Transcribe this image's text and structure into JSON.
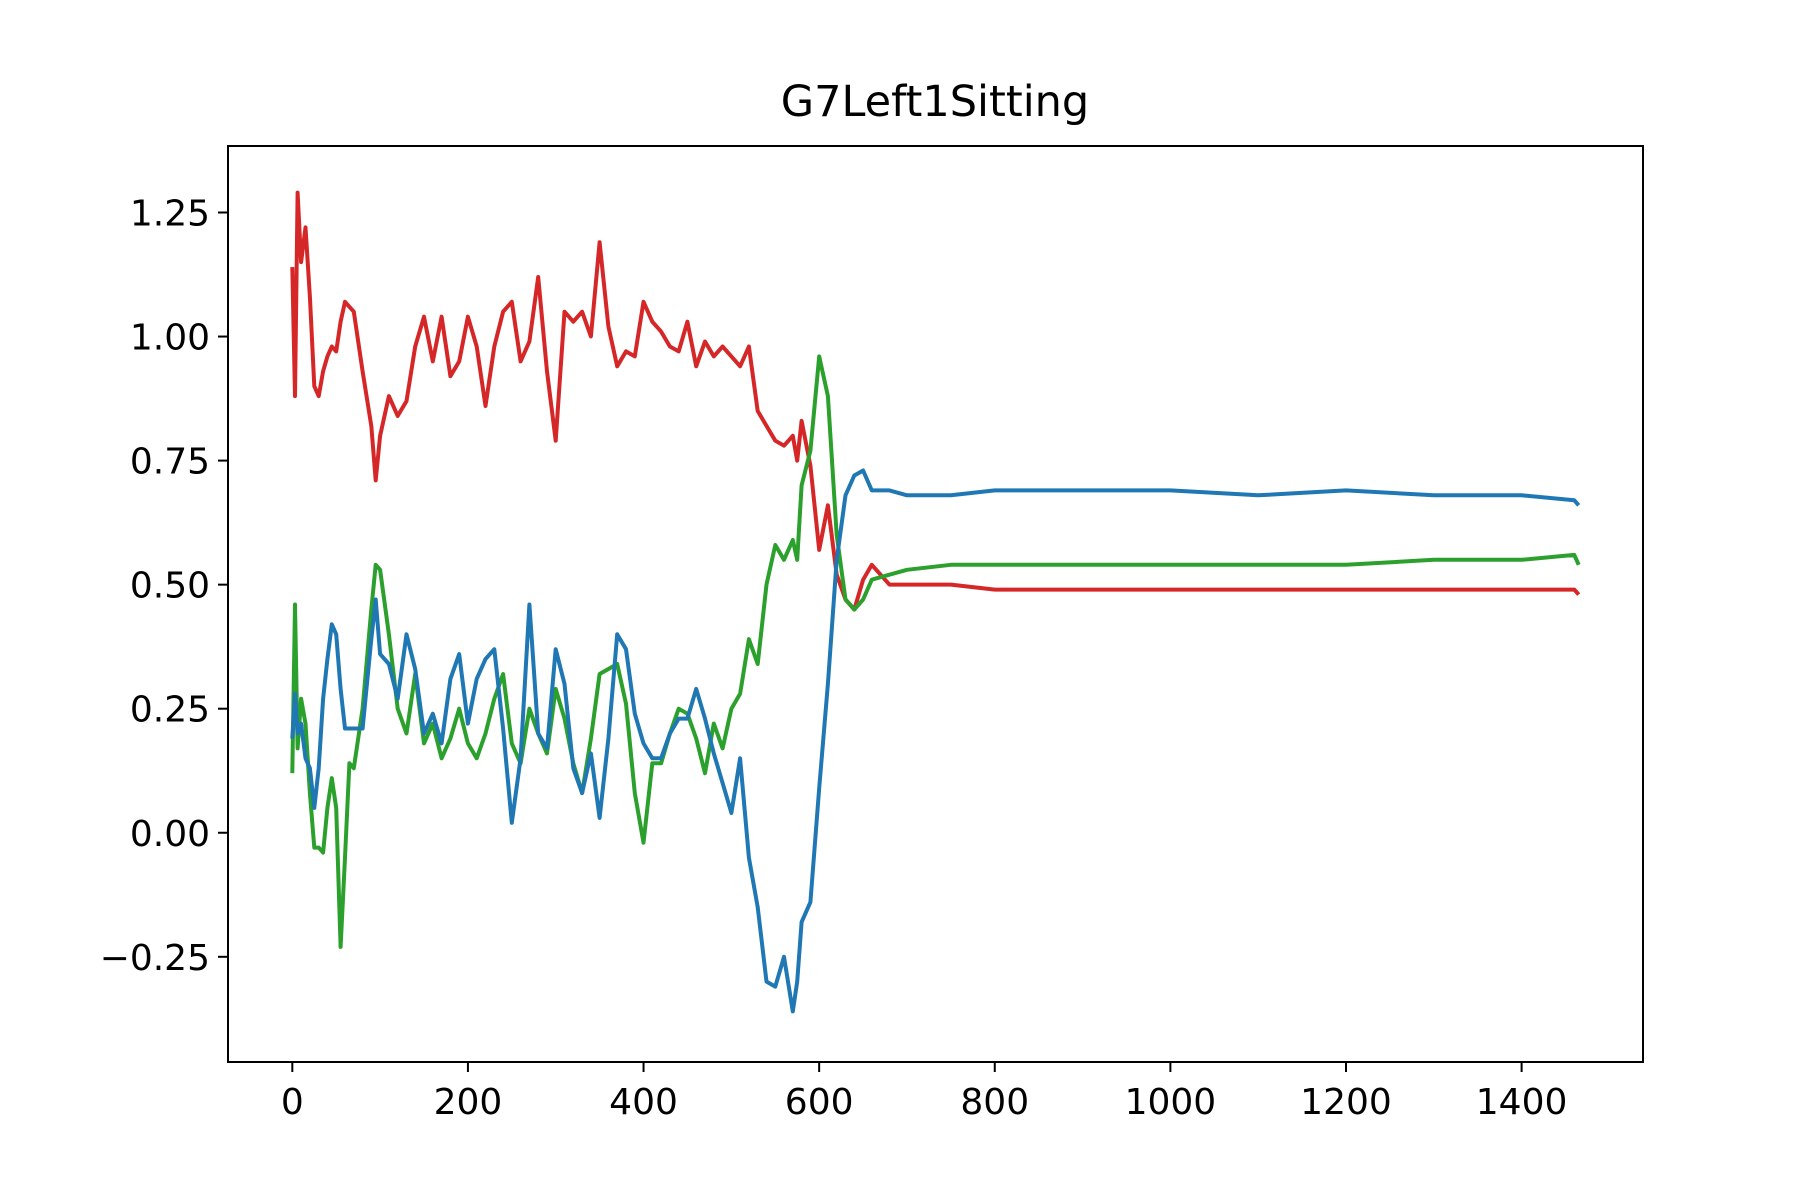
{
  "chart_data": {
    "type": "line",
    "title": "G7Left1Sitting",
    "x": [
      0,
      3,
      6,
      10,
      15,
      20,
      25,
      30,
      35,
      40,
      45,
      50,
      55,
      60,
      65,
      70,
      80,
      90,
      95,
      100,
      110,
      120,
      130,
      140,
      150,
      160,
      170,
      180,
      190,
      200,
      210,
      220,
      230,
      240,
      250,
      260,
      270,
      280,
      290,
      300,
      310,
      320,
      330,
      340,
      350,
      360,
      370,
      380,
      390,
      400,
      410,
      420,
      430,
      440,
      450,
      460,
      470,
      480,
      490,
      500,
      510,
      520,
      530,
      540,
      550,
      560,
      570,
      575,
      580,
      590,
      600,
      610,
      620,
      630,
      640,
      650,
      660,
      680,
      700,
      750,
      800,
      900,
      1000,
      1100,
      1200,
      1300,
      1400,
      1460,
      1465
    ],
    "series": [
      {
        "color": "#d62728",
        "values": [
          1.14,
          0.88,
          1.29,
          1.15,
          1.22,
          1.08,
          0.9,
          0.88,
          0.93,
          0.96,
          0.98,
          0.97,
          1.03,
          1.07,
          1.06,
          1.05,
          0.93,
          0.82,
          0.71,
          0.8,
          0.88,
          0.84,
          0.87,
          0.98,
          1.04,
          0.95,
          1.04,
          0.92,
          0.95,
          1.04,
          0.98,
          0.86,
          0.98,
          1.05,
          1.07,
          0.95,
          0.99,
          1.12,
          0.93,
          0.79,
          1.05,
          1.03,
          1.05,
          1.0,
          1.19,
          1.02,
          0.94,
          0.97,
          0.96,
          1.07,
          1.03,
          1.01,
          0.98,
          0.97,
          1.03,
          0.94,
          0.99,
          0.96,
          0.98,
          0.96,
          0.94,
          0.98,
          0.85,
          0.82,
          0.79,
          0.78,
          0.8,
          0.75,
          0.83,
          0.74,
          0.57,
          0.66,
          0.52,
          0.47,
          0.45,
          0.51,
          0.54,
          0.5,
          0.5,
          0.5,
          0.49,
          0.49,
          0.49,
          0.49,
          0.49,
          0.49,
          0.49,
          0.49,
          0.48
        ]
      },
      {
        "color": "#2ca02c",
        "values": [
          0.12,
          0.46,
          0.17,
          0.27,
          0.22,
          0.08,
          -0.03,
          -0.03,
          -0.04,
          0.05,
          0.11,
          0.05,
          -0.23,
          -0.05,
          0.14,
          0.13,
          0.25,
          0.45,
          0.54,
          0.53,
          0.4,
          0.25,
          0.2,
          0.32,
          0.18,
          0.22,
          0.15,
          0.19,
          0.25,
          0.18,
          0.15,
          0.2,
          0.27,
          0.32,
          0.18,
          0.14,
          0.25,
          0.2,
          0.16,
          0.29,
          0.23,
          0.14,
          0.08,
          0.19,
          0.32,
          0.33,
          0.34,
          0.26,
          0.08,
          -0.02,
          0.14,
          0.14,
          0.2,
          0.25,
          0.24,
          0.19,
          0.12,
          0.22,
          0.17,
          0.25,
          0.28,
          0.39,
          0.34,
          0.5,
          0.58,
          0.55,
          0.59,
          0.55,
          0.7,
          0.77,
          0.96,
          0.88,
          0.6,
          0.47,
          0.45,
          0.47,
          0.51,
          0.52,
          0.53,
          0.54,
          0.54,
          0.54,
          0.54,
          0.54,
          0.54,
          0.55,
          0.55,
          0.56,
          0.54
        ]
      },
      {
        "color": "#1f77b4",
        "values": [
          0.19,
          0.28,
          0.2,
          0.22,
          0.15,
          0.13,
          0.05,
          0.13,
          0.27,
          0.35,
          0.42,
          0.4,
          0.29,
          0.21,
          0.21,
          0.21,
          0.21,
          0.39,
          0.47,
          0.36,
          0.34,
          0.27,
          0.4,
          0.33,
          0.2,
          0.24,
          0.18,
          0.31,
          0.36,
          0.22,
          0.31,
          0.35,
          0.37,
          0.21,
          0.02,
          0.15,
          0.46,
          0.2,
          0.17,
          0.37,
          0.3,
          0.13,
          0.08,
          0.16,
          0.03,
          0.19,
          0.4,
          0.37,
          0.24,
          0.18,
          0.15,
          0.15,
          0.2,
          0.23,
          0.23,
          0.29,
          0.23,
          0.16,
          0.1,
          0.04,
          0.15,
          -0.05,
          -0.15,
          -0.3,
          -0.31,
          -0.25,
          -0.36,
          -0.3,
          -0.18,
          -0.14,
          0.09,
          0.3,
          0.55,
          0.68,
          0.72,
          0.73,
          0.69,
          0.69,
          0.68,
          0.68,
          0.69,
          0.69,
          0.69,
          0.68,
          0.69,
          0.68,
          0.68,
          0.67,
          0.66
        ]
      }
    ],
    "xlim": [
      -73.25,
      1538.25
    ],
    "ylim": [
      -0.462,
      1.384
    ],
    "xticks": [
      0,
      200,
      400,
      600,
      800,
      1000,
      1200,
      1400
    ],
    "yticks": [
      {
        "value": -0.25,
        "label": "−0.25"
      },
      {
        "value": 0,
        "label": "0.00"
      },
      0.25,
      {
        "value": 0.5,
        "label": "0.50"
      },
      0.75,
      {
        "value": 1,
        "label": "1.00"
      },
      1.25
    ]
  }
}
